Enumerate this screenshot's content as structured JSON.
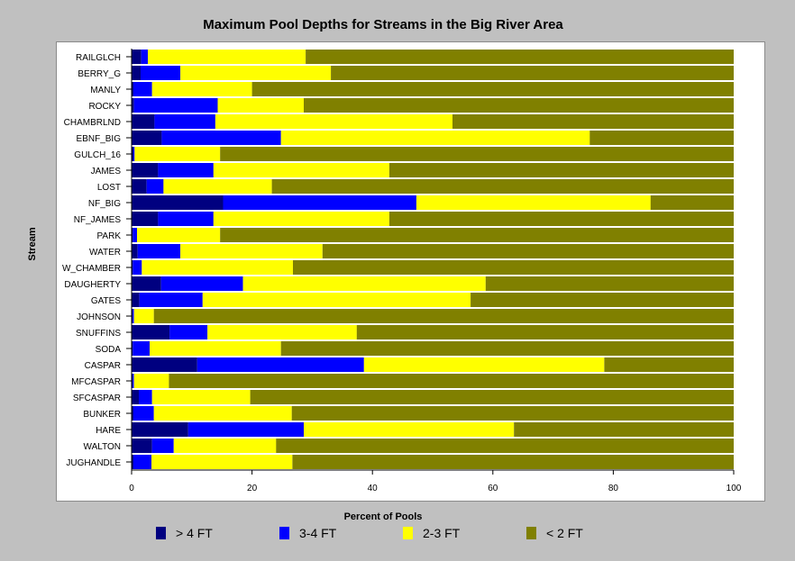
{
  "chart_data": {
    "type": "bar",
    "orientation": "horizontal",
    "stacked": true,
    "title": "Maximum Pool Depths for Streams in the Big River Area",
    "xlabel": "Percent of Pools",
    "ylabel": "Stream",
    "xlim": [
      0,
      100
    ],
    "xticks": [
      0,
      20,
      40,
      60,
      80,
      100
    ],
    "grid": false,
    "legend_position": "bottom",
    "categories": [
      "RAILGLCH",
      "BERRY_G",
      "MANLY",
      "ROCKY",
      "CHAMBRLND",
      "EBNF_BIG",
      "GULCH_16",
      "JAMES",
      "LOST",
      "NF_BIG",
      "NF_JAMES",
      "PARK",
      "WATER",
      "W_CHAMBER",
      "DAUGHERTY",
      "GATES",
      "JOHNSON",
      "SNUFFINS",
      "SODA",
      "CASPAR",
      "MFCASPAR",
      "SFCASPAR",
      "BUNKER",
      "HARE",
      "WALTON",
      "JUGHANDLE"
    ],
    "series": [
      {
        "name": "> 4 FT",
        "color": "#000080",
        "values": [
          1.6,
          1.5,
          0.3,
          0.4,
          3.8,
          5.0,
          0.3,
          4.4,
          2.5,
          15.2,
          4.4,
          0.2,
          1.0,
          0.2,
          4.9,
          1.3,
          0.2,
          6.3,
          0.2,
          10.9,
          0.2,
          1.2,
          0.3,
          9.4,
          3.4,
          0.3
        ]
      },
      {
        "name": "3-4 FT",
        "color": "#0000ff",
        "values": [
          1.1,
          6.6,
          3.1,
          13.9,
          10.1,
          19.8,
          0.2,
          9.2,
          2.8,
          32.1,
          9.2,
          0.7,
          7.1,
          1.5,
          13.6,
          10.5,
          0.2,
          6.3,
          2.8,
          27.7,
          0.2,
          2.2,
          3.4,
          19.2,
          3.6,
          3.0
        ]
      },
      {
        "name": "2-3 FT",
        "color": "#ffff00",
        "values": [
          26.2,
          25.0,
          16.6,
          14.3,
          39.4,
          51.3,
          14.2,
          29.2,
          18.0,
          38.9,
          29.2,
          13.8,
          23.6,
          25.1,
          40.3,
          44.5,
          3.3,
          24.8,
          21.8,
          39.9,
          5.8,
          16.3,
          22.9,
          34.9,
          17.0,
          23.4
        ]
      },
      {
        "name": "< 2 FT",
        "color": "#808000",
        "values": [
          71.1,
          66.9,
          80.0,
          71.4,
          46.7,
          23.9,
          85.3,
          57.2,
          76.7,
          13.8,
          57.2,
          85.3,
          68.3,
          73.2,
          41.2,
          43.7,
          96.3,
          62.6,
          75.2,
          21.5,
          93.8,
          80.3,
          73.4,
          36.5,
          76.0,
          73.3
        ]
      }
    ]
  }
}
